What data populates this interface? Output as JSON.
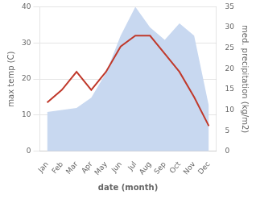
{
  "chart_data": {
    "type": "line",
    "xlabel": "date (month)",
    "ylabel": "max temp (C)",
    "y2label": "med. precipitation (kg/m2)",
    "categories": [
      "Jan",
      "Feb",
      "Mar",
      "Apr",
      "May",
      "Jun",
      "Jul",
      "Aug",
      "Sep",
      "Oct",
      "Nov",
      "Dec"
    ],
    "series": [
      {
        "type": "area",
        "color": "#c8d8f0",
        "axis": "y2",
        "values": [
          9.5,
          10.0,
          10.5,
          13.0,
          19.0,
          28.0,
          35.0,
          30.0,
          27.0,
          31.0,
          28.0,
          11.0
        ]
      },
      {
        "type": "line",
        "color": "#c0392b",
        "values": [
          13.5,
          17.0,
          22.0,
          17.0,
          22.0,
          29.0,
          32.0,
          32.0,
          27.0,
          22.0,
          15.0,
          7.0
        ]
      }
    ],
    "ylim": [
      0,
      40
    ],
    "yticks": [
      0,
      10,
      20,
      30,
      40
    ],
    "y2lim": [
      0,
      35
    ],
    "y2ticks": [
      0,
      5,
      10,
      15,
      20,
      25,
      30,
      35
    ],
    "grid": true
  }
}
